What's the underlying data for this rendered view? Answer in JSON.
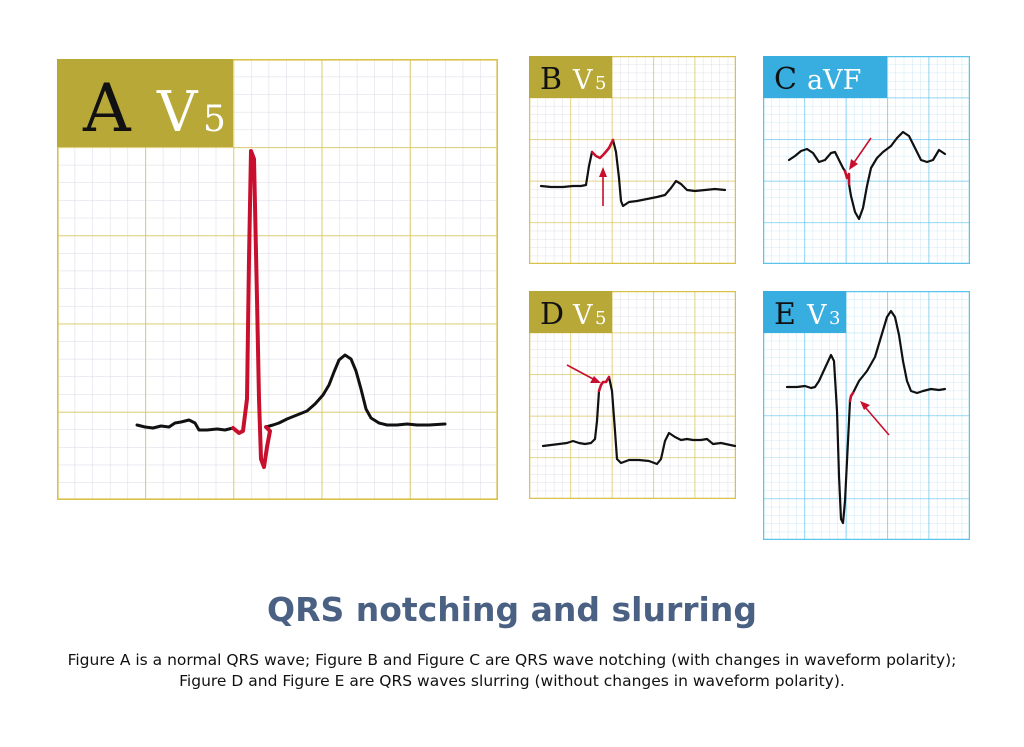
{
  "title": "QRS notching and slurring",
  "caption": {
    "line1": "Figure A is a normal QRS wave; Figure B and Figure C are QRS wave notching (with changes in waveform polarity);",
    "line2": "Figure D and Figure E are QRS waves slurring (without changes in waveform polarity)."
  },
  "colors": {
    "gold_label": "#b8a838",
    "gold_grid_major": "#d9c24a",
    "gold_grid_minor": "#d8d8e4",
    "blue_label": "#38ade0",
    "blue_grid_major": "#5cc3ec",
    "blue_grid_minor": "#bfe4f2",
    "highlight": "#c8102e",
    "trace": "#111111"
  },
  "panels": [
    {
      "id": "A",
      "letter": "A",
      "lead": "V",
      "sub": "5",
      "theme": "gold",
      "feature": "normal QRS"
    },
    {
      "id": "B",
      "letter": "B",
      "lead": "V",
      "sub": "5",
      "theme": "gold",
      "feature": "QRS notching"
    },
    {
      "id": "C",
      "letter": "C",
      "lead": "aVF",
      "sub": "",
      "theme": "blue",
      "feature": "QRS notching"
    },
    {
      "id": "D",
      "letter": "D",
      "lead": "V",
      "sub": "5",
      "theme": "gold",
      "feature": "QRS slurring"
    },
    {
      "id": "E",
      "letter": "E",
      "lead": "V",
      "sub": "3",
      "theme": "blue",
      "feature": "QRS slurring"
    }
  ],
  "icons": {
    "arrow": "red-arrow-icon"
  }
}
